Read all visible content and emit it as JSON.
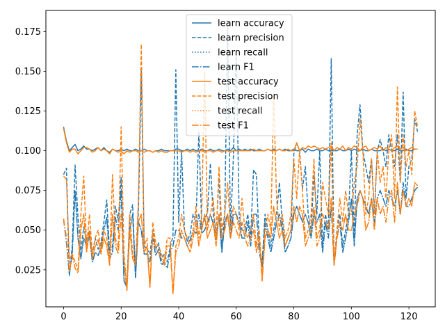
{
  "chart_data": {
    "type": "line",
    "title": "",
    "xlabel": "",
    "ylabel": "",
    "xlim": [
      -6.15,
      129.15
    ],
    "ylim": [
      0.0017,
      0.1883
    ],
    "x_ticks": [
      0,
      20,
      40,
      60,
      80,
      100,
      120
    ],
    "y_ticks": [
      0.025,
      0.05,
      0.075,
      0.1,
      0.125,
      0.15,
      0.175
    ],
    "y_tick_labels": [
      "0.025",
      "0.050",
      "0.075",
      "0.100",
      "0.125",
      "0.150",
      "0.175"
    ],
    "grid": false,
    "legend_position": "top-center",
    "series": [
      {
        "name": "learn accuracy",
        "color": "#1f77b4",
        "dash": "solid",
        "values": [
          0.115,
          0.106,
          0.1,
          0.102,
          0.104,
          0.1,
          0.101,
          0.103,
          0.101,
          0.101,
          0.1,
          0.101,
          0.102,
          0.1,
          0.102,
          0.1,
          0.099,
          0.101,
          0.1,
          0.1,
          0.101,
          0.1,
          0.101,
          0.1,
          0.1,
          0.101,
          0.1,
          0.1,
          0.101,
          0.1,
          0.1,
          0.099,
          0.1,
          0.1,
          0.101,
          0.1,
          0.1,
          0.1,
          0.1,
          0.101,
          0.101,
          0.1,
          0.1,
          0.101,
          0.1,
          0.101,
          0.1,
          0.1,
          0.101,
          0.1,
          0.1,
          0.101,
          0.1,
          0.1,
          0.101,
          0.1,
          0.1,
          0.101,
          0.1,
          0.102,
          0.1,
          0.101,
          0.1,
          0.101,
          0.1,
          0.101,
          0.1,
          0.1,
          0.101,
          0.1,
          0.1,
          0.101,
          0.1,
          0.101,
          0.1,
          0.101,
          0.1,
          0.101,
          0.1,
          0.1,
          0.101,
          0.1,
          0.1,
          0.101,
          0.099,
          0.101,
          0.1,
          0.1,
          0.101,
          0.1,
          0.1,
          0.101,
          0.1,
          0.1,
          0.1,
          0.1,
          0.101,
          0.1,
          0.1,
          0.101,
          0.1,
          0.101,
          0.1,
          0.1,
          0.101,
          0.1,
          0.1,
          0.101,
          0.1,
          0.1,
          0.1,
          0.101,
          0.1,
          0.101,
          0.1,
          0.1,
          0.101,
          0.1,
          0.1,
          0.101,
          0.1,
          0.1,
          0.101,
          0.101
        ]
      },
      {
        "name": "learn precision",
        "color": "#1f77b4",
        "dash": "dashed",
        "values": [
          0.085,
          0.089,
          0.021,
          0.04,
          0.091,
          0.058,
          0.037,
          0.052,
          0.043,
          0.05,
          0.035,
          0.045,
          0.038,
          0.042,
          0.055,
          0.069,
          0.036,
          0.04,
          0.065,
          0.056,
          0.083,
          0.019,
          0.015,
          0.06,
          0.066,
          0.02,
          0.062,
          0.15,
          0.04,
          0.038,
          0.035,
          0.05,
          0.038,
          0.042,
          0.031,
          0.035,
          0.03,
          0.039,
          0.046,
          0.151,
          0.055,
          0.1,
          0.05,
          0.043,
          0.048,
          0.06,
          0.055,
          0.112,
          0.052,
          0.057,
          0.061,
          0.092,
          0.06,
          0.048,
          0.083,
          0.04,
          0.06,
          0.178,
          0.05,
          0.096,
          0.163,
          0.06,
          0.05,
          0.05,
          0.06,
          0.045,
          0.088,
          0.085,
          0.04,
          0.03,
          0.06,
          0.05,
          0.04,
          0.05,
          0.06,
          0.08,
          0.055,
          0.04,
          0.045,
          0.05,
          0.098,
          0.105,
          0.1,
          0.076,
          0.09,
          0.06,
          0.05,
          0.085,
          0.06,
          0.1,
          0.04,
          0.06,
          0.05,
          0.158,
          0.03,
          0.05,
          0.06,
          0.04,
          0.05,
          0.06,
          0.1,
          0.045,
          0.11,
          0.129,
          0.1,
          0.09,
          0.08,
          0.095,
          0.06,
          0.1,
          0.107,
          0.1,
          0.09,
          0.11,
          0.1,
          0.09,
          0.11,
          0.08,
          0.137,
          0.07,
          0.09,
          0.095,
          0.12,
          0.112
        ]
      },
      {
        "name": "learn recall",
        "color": "#1f77b4",
        "dash": "dotted",
        "values": [
          0.057,
          0.042,
          0.022,
          0.035,
          0.075,
          0.045,
          0.032,
          0.045,
          0.04,
          0.046,
          0.03,
          0.036,
          0.034,
          0.039,
          0.05,
          0.058,
          0.032,
          0.036,
          0.058,
          0.05,
          0.075,
          0.018,
          0.014,
          0.05,
          0.06,
          0.02,
          0.055,
          0.05,
          0.035,
          0.035,
          0.03,
          0.045,
          0.034,
          0.038,
          0.028,
          0.03,
          0.026,
          0.036,
          0.04,
          0.05,
          0.05,
          0.045,
          0.045,
          0.04,
          0.044,
          0.05,
          0.048,
          0.06,
          0.048,
          0.05,
          0.055,
          0.06,
          0.054,
          0.044,
          0.06,
          0.036,
          0.055,
          0.06,
          0.045,
          0.06,
          0.06,
          0.055,
          0.045,
          0.045,
          0.055,
          0.04,
          0.06,
          0.06,
          0.036,
          0.027,
          0.055,
          0.045,
          0.036,
          0.045,
          0.055,
          0.06,
          0.05,
          0.036,
          0.04,
          0.045,
          0.06,
          0.065,
          0.06,
          0.055,
          0.06,
          0.055,
          0.045,
          0.06,
          0.055,
          0.06,
          0.036,
          0.055,
          0.045,
          0.065,
          0.028,
          0.045,
          0.055,
          0.036,
          0.045,
          0.055,
          0.07,
          0.04,
          0.07,
          0.075,
          0.07,
          0.065,
          0.06,
          0.07,
          0.055,
          0.07,
          0.075,
          0.07,
          0.065,
          0.075,
          0.07,
          0.065,
          0.075,
          0.06,
          0.08,
          0.065,
          0.065,
          0.07,
          0.075,
          0.077
        ]
      },
      {
        "name": "learn F1",
        "color": "#1f77b4",
        "dash": "dashdot",
        "values": [
          0.057,
          0.042,
          0.022,
          0.035,
          0.075,
          0.045,
          0.032,
          0.045,
          0.04,
          0.046,
          0.03,
          0.036,
          0.034,
          0.039,
          0.05,
          0.058,
          0.032,
          0.036,
          0.058,
          0.05,
          0.075,
          0.018,
          0.014,
          0.05,
          0.06,
          0.02,
          0.055,
          0.05,
          0.035,
          0.035,
          0.03,
          0.045,
          0.034,
          0.038,
          0.028,
          0.03,
          0.026,
          0.036,
          0.04,
          0.05,
          0.05,
          0.045,
          0.045,
          0.04,
          0.044,
          0.05,
          0.048,
          0.06,
          0.048,
          0.05,
          0.055,
          0.06,
          0.054,
          0.044,
          0.06,
          0.036,
          0.055,
          0.06,
          0.045,
          0.06,
          0.06,
          0.055,
          0.045,
          0.045,
          0.055,
          0.04,
          0.06,
          0.06,
          0.036,
          0.027,
          0.055,
          0.045,
          0.036,
          0.045,
          0.055,
          0.06,
          0.05,
          0.036,
          0.04,
          0.045,
          0.06,
          0.065,
          0.06,
          0.055,
          0.06,
          0.055,
          0.045,
          0.06,
          0.055,
          0.06,
          0.036,
          0.055,
          0.045,
          0.065,
          0.028,
          0.045,
          0.055,
          0.036,
          0.045,
          0.055,
          0.07,
          0.04,
          0.07,
          0.075,
          0.07,
          0.065,
          0.06,
          0.07,
          0.055,
          0.07,
          0.075,
          0.07,
          0.065,
          0.075,
          0.07,
          0.065,
          0.075,
          0.06,
          0.08,
          0.065,
          0.065,
          0.07,
          0.075,
          0.077
        ]
      },
      {
        "name": "test accuracy",
        "color": "#ff7f0e",
        "dash": "solid",
        "values": [
          0.114,
          0.105,
          0.099,
          0.101,
          0.101,
          0.098,
          0.1,
          0.102,
          0.102,
          0.101,
          0.099,
          0.1,
          0.102,
          0.1,
          0.101,
          0.1,
          0.098,
          0.101,
          0.1,
          0.099,
          0.1,
          0.098,
          0.1,
          0.099,
          0.1,
          0.1,
          0.099,
          0.1,
          0.099,
          0.1,
          0.1,
          0.099,
          0.1,
          0.099,
          0.1,
          0.099,
          0.099,
          0.1,
          0.1,
          0.1,
          0.1,
          0.099,
          0.1,
          0.1,
          0.099,
          0.1,
          0.099,
          0.1,
          0.1,
          0.099,
          0.1,
          0.1,
          0.099,
          0.1,
          0.1,
          0.099,
          0.1,
          0.1,
          0.099,
          0.1,
          0.1,
          0.1,
          0.1,
          0.1,
          0.1,
          0.1,
          0.101,
          0.1,
          0.1,
          0.1,
          0.1,
          0.101,
          0.1,
          0.1,
          0.1,
          0.101,
          0.1,
          0.1,
          0.101,
          0.1,
          0.1,
          0.105,
          0.1,
          0.102,
          0.101,
          0.103,
          0.102,
          0.103,
          0.102,
          0.101,
          0.102,
          0.101,
          0.102,
          0.103,
          0.1,
          0.102,
          0.101,
          0.103,
          0.1,
          0.102,
          0.101,
          0.103,
          0.102,
          0.1,
          0.102,
          0.103,
          0.1,
          0.101,
          0.102,
          0.101,
          0.103,
          0.1,
          0.102,
          0.101,
          0.1,
          0.102,
          0.103,
          0.101,
          0.102,
          0.1,
          0.101,
          0.102,
          0.101,
          0.101
        ]
      },
      {
        "name": "test precision",
        "color": "#ff7f0e",
        "dash": "dashed",
        "values": [
          0.084,
          0.082,
          0.032,
          0.035,
          0.03,
          0.025,
          0.06,
          0.084,
          0.04,
          0.06,
          0.035,
          0.045,
          0.05,
          0.038,
          0.05,
          0.045,
          0.03,
          0.085,
          0.045,
          0.038,
          0.115,
          0.035,
          0.013,
          0.06,
          0.035,
          0.03,
          0.068,
          0.167,
          0.04,
          0.045,
          0.014,
          0.055,
          0.042,
          0.04,
          0.035,
          0.03,
          0.045,
          0.045,
          0.01,
          0.04,
          0.045,
          0.06,
          0.05,
          0.045,
          0.04,
          0.05,
          0.065,
          0.045,
          0.06,
          0.15,
          0.05,
          0.06,
          0.07,
          0.045,
          0.09,
          0.05,
          0.06,
          0.08,
          0.05,
          0.065,
          0.06,
          0.05,
          0.07,
          0.05,
          0.045,
          0.05,
          0.06,
          0.04,
          0.05,
          0.02,
          0.05,
          0.06,
          0.05,
          0.135,
          0.07,
          0.05,
          0.06,
          0.045,
          0.05,
          0.06,
          0.095,
          0.07,
          0.1,
          0.075,
          0.045,
          0.05,
          0.06,
          0.095,
          0.045,
          0.05,
          0.08,
          0.07,
          0.06,
          0.105,
          0.03,
          0.05,
          0.07,
          0.055,
          0.075,
          0.06,
          0.06,
          0.08,
          0.09,
          0.12,
          0.1,
          0.06,
          0.07,
          0.095,
          0.06,
          0.1,
          0.08,
          0.09,
          0.07,
          0.1,
          0.11,
          0.07,
          0.14,
          0.08,
          0.11,
          0.09,
          0.1,
          0.085,
          0.125,
          0.115
        ]
      },
      {
        "name": "test recall",
        "color": "#ff7f0e",
        "dash": "dotted",
        "values": [
          0.057,
          0.045,
          0.024,
          0.034,
          0.026,
          0.023,
          0.05,
          0.06,
          0.036,
          0.05,
          0.032,
          0.04,
          0.044,
          0.035,
          0.045,
          0.04,
          0.028,
          0.06,
          0.04,
          0.035,
          0.06,
          0.03,
          0.012,
          0.05,
          0.032,
          0.028,
          0.055,
          0.06,
          0.036,
          0.04,
          0.014,
          0.048,
          0.038,
          0.036,
          0.032,
          0.028,
          0.04,
          0.04,
          0.01,
          0.036,
          0.04,
          0.05,
          0.045,
          0.04,
          0.036,
          0.045,
          0.055,
          0.04,
          0.05,
          0.06,
          0.045,
          0.05,
          0.055,
          0.04,
          0.06,
          0.045,
          0.05,
          0.06,
          0.045,
          0.055,
          0.05,
          0.045,
          0.055,
          0.045,
          0.04,
          0.045,
          0.05,
          0.036,
          0.045,
          0.018,
          0.045,
          0.05,
          0.045,
          0.065,
          0.055,
          0.045,
          0.05,
          0.04,
          0.045,
          0.05,
          0.065,
          0.055,
          0.065,
          0.06,
          0.04,
          0.045,
          0.05,
          0.065,
          0.04,
          0.045,
          0.06,
          0.055,
          0.05,
          0.07,
          0.028,
          0.045,
          0.055,
          0.05,
          0.06,
          0.05,
          0.05,
          0.06,
          0.065,
          0.075,
          0.07,
          0.05,
          0.055,
          0.07,
          0.05,
          0.07,
          0.06,
          0.065,
          0.055,
          0.07,
          0.075,
          0.055,
          0.08,
          0.06,
          0.075,
          0.065,
          0.07,
          0.065,
          0.08,
          0.078
        ]
      },
      {
        "name": "test F1",
        "color": "#ff7f0e",
        "dash": "dashdot",
        "values": [
          0.057,
          0.045,
          0.024,
          0.034,
          0.026,
          0.023,
          0.05,
          0.06,
          0.036,
          0.05,
          0.032,
          0.04,
          0.044,
          0.035,
          0.045,
          0.04,
          0.028,
          0.06,
          0.04,
          0.035,
          0.06,
          0.03,
          0.012,
          0.05,
          0.032,
          0.028,
          0.055,
          0.06,
          0.036,
          0.04,
          0.014,
          0.048,
          0.038,
          0.036,
          0.032,
          0.028,
          0.04,
          0.04,
          0.01,
          0.036,
          0.04,
          0.05,
          0.045,
          0.04,
          0.036,
          0.045,
          0.055,
          0.04,
          0.05,
          0.06,
          0.045,
          0.05,
          0.055,
          0.04,
          0.06,
          0.045,
          0.05,
          0.06,
          0.045,
          0.055,
          0.05,
          0.045,
          0.055,
          0.045,
          0.04,
          0.045,
          0.05,
          0.036,
          0.045,
          0.018,
          0.045,
          0.05,
          0.045,
          0.065,
          0.055,
          0.045,
          0.05,
          0.04,
          0.045,
          0.05,
          0.065,
          0.055,
          0.065,
          0.06,
          0.04,
          0.045,
          0.05,
          0.065,
          0.04,
          0.045,
          0.06,
          0.055,
          0.05,
          0.07,
          0.028,
          0.045,
          0.055,
          0.05,
          0.06,
          0.05,
          0.05,
          0.06,
          0.065,
          0.075,
          0.07,
          0.05,
          0.055,
          0.07,
          0.05,
          0.07,
          0.06,
          0.065,
          0.055,
          0.07,
          0.075,
          0.055,
          0.08,
          0.06,
          0.075,
          0.065,
          0.07,
          0.065,
          0.08,
          0.078
        ]
      }
    ]
  }
}
